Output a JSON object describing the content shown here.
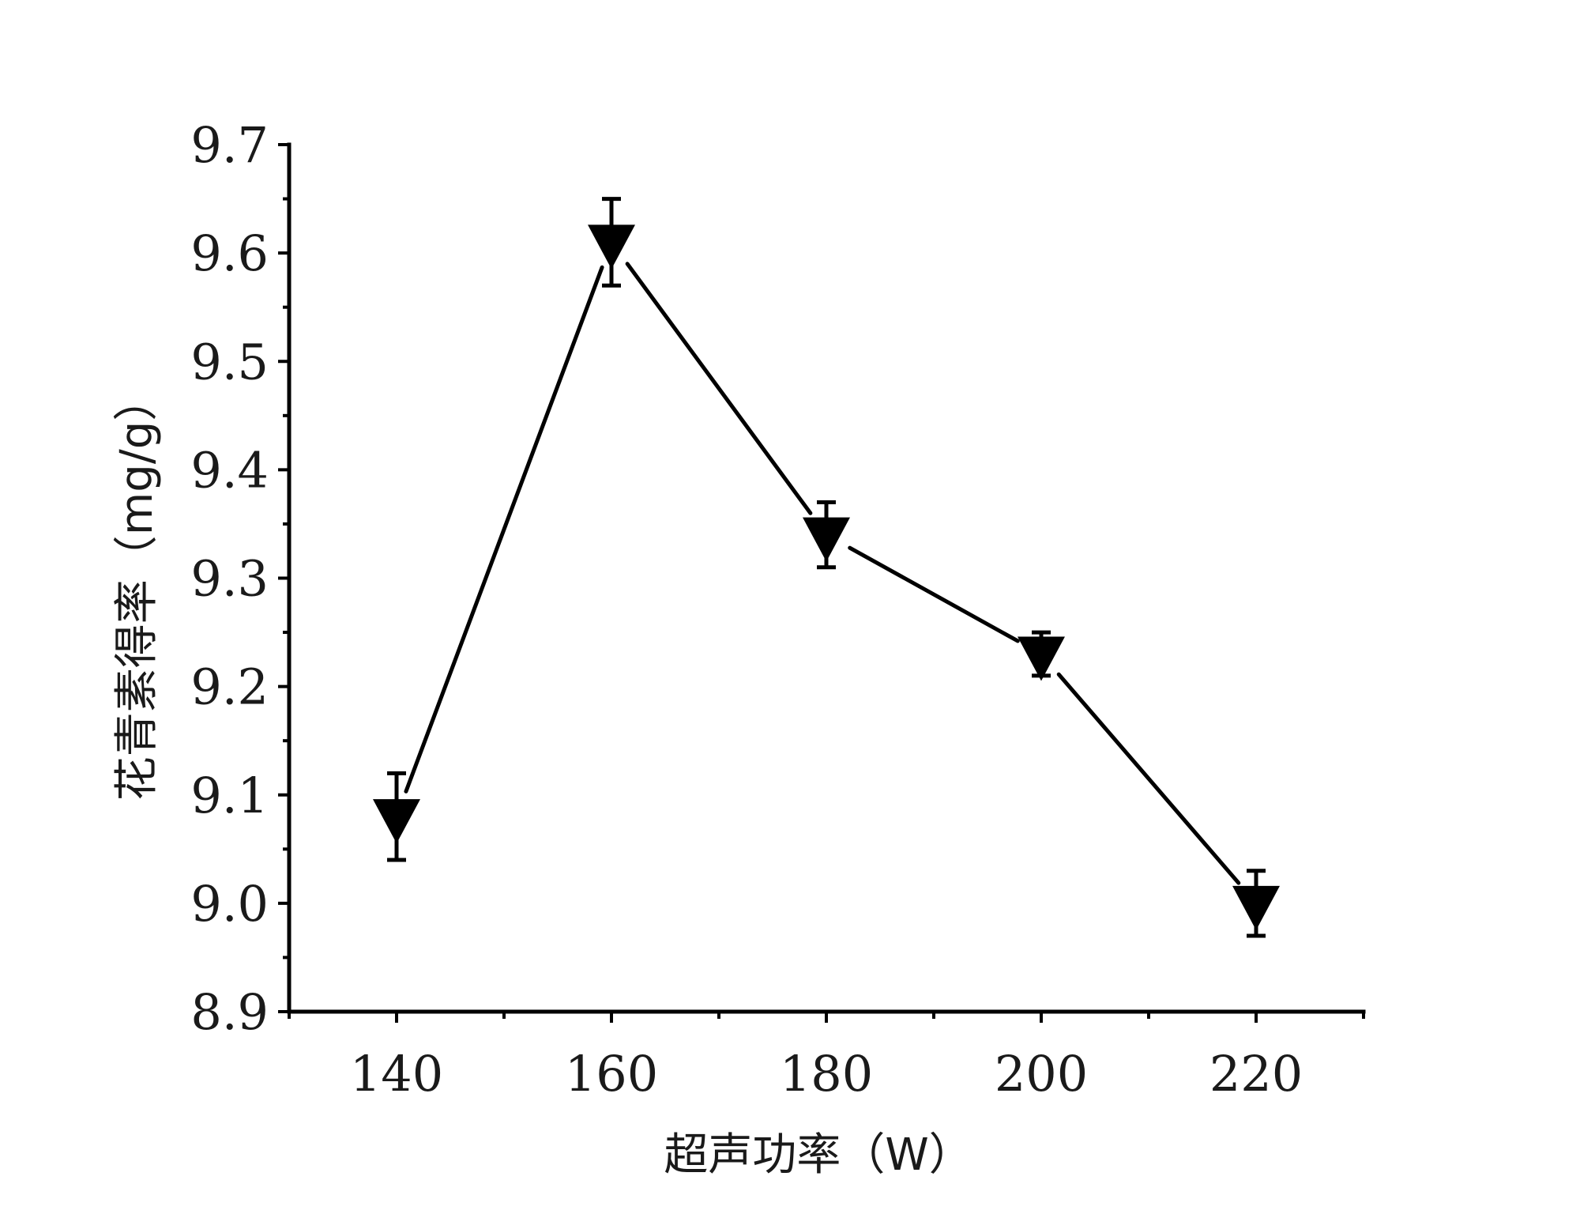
{
  "chart_data": {
    "type": "line",
    "title": "",
    "xlabel": "超声功率（W）",
    "ylabel": "花青素得率（mg/g）",
    "x": [
      140,
      160,
      180,
      200,
      220
    ],
    "series": [
      {
        "values": [
          9.08,
          9.61,
          9.34,
          9.23,
          9.0
        ],
        "error": [
          0.04,
          0.04,
          0.03,
          0.02,
          0.03
        ],
        "marker": "down-triangle",
        "color": "#000000"
      }
    ],
    "xlim": [
      130,
      230
    ],
    "ylim": [
      8.9,
      9.7
    ],
    "xticks": [
      140,
      160,
      180,
      200,
      220
    ],
    "yticks": [
      8.9,
      9.0,
      9.1,
      9.2,
      9.3,
      9.4,
      9.5,
      9.6,
      9.7
    ],
    "ytick_labels": [
      "8.9",
      "9.0",
      "9.1",
      "9.2",
      "9.3",
      "9.4",
      "9.5",
      "9.6",
      "9.7"
    ],
    "xtick_labels": [
      "140",
      "160",
      "180",
      "200",
      "220"
    ],
    "grid": false,
    "legend": "none"
  }
}
